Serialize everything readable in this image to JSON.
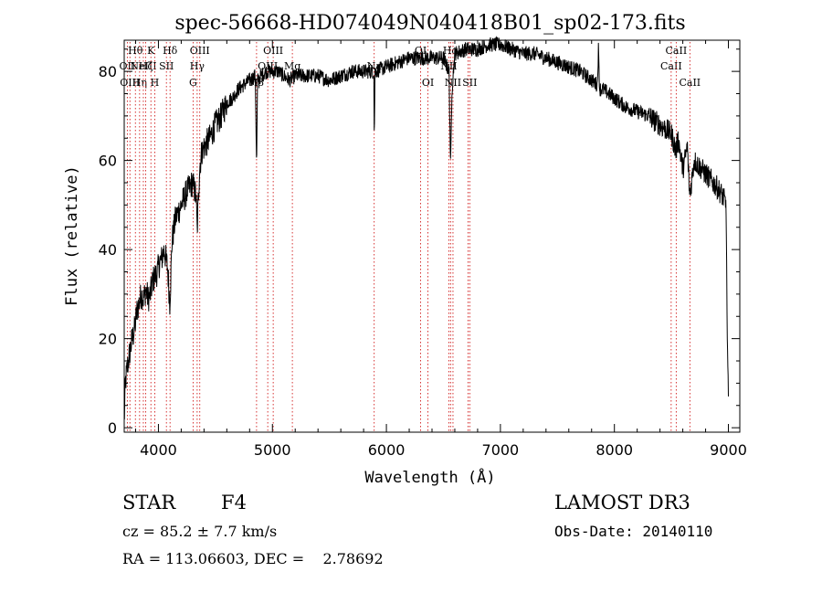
{
  "chart_data": {
    "type": "line",
    "title": "spec-56668-HD074049N040418B01_sp02-173.fits",
    "xlabel": "Wavelength (Å)",
    "ylabel": "Flux (relative)",
    "xlim": [
      3700,
      9100
    ],
    "ylim": [
      -1,
      87
    ],
    "xticks": [
      4000,
      5000,
      6000,
      7000,
      8000,
      9000
    ],
    "yticks": [
      0,
      20,
      40,
      60,
      80
    ],
    "series": [
      {
        "name": "spectrum",
        "x": [
          3700,
          3710,
          3730,
          3750,
          3770,
          3790,
          3810,
          3830,
          3850,
          3870,
          3890,
          3910,
          3930,
          3950,
          3970,
          3990,
          4010,
          4030,
          4050,
          4080,
          4100,
          4120,
          4150,
          4200,
          4250,
          4300,
          4330,
          4340,
          4360,
          4380,
          4400,
          4450,
          4500,
          4550,
          4600,
          4650,
          4700,
          4750,
          4800,
          4850,
          4861,
          4870,
          4900,
          4950,
          5000,
          5050,
          5100,
          5150,
          5200,
          5300,
          5400,
          5500,
          5600,
          5700,
          5800,
          5890,
          5893,
          5900,
          6000,
          6100,
          6200,
          6300,
          6400,
          6500,
          6550,
          6563,
          6575,
          6600,
          6700,
          6800,
          6900,
          7000,
          7100,
          7200,
          7300,
          7400,
          7500,
          7600,
          7700,
          7800,
          7850,
          7860,
          7870,
          7900,
          8000,
          8100,
          8200,
          8300,
          8400,
          8500,
          8540,
          8560,
          8600,
          8640,
          8660,
          8700,
          8800,
          8900,
          8950,
          8980,
          8990,
          9000
        ],
        "y": [
          1,
          10,
          14,
          17,
          20,
          22,
          26,
          28,
          30,
          29,
          31,
          29,
          30,
          33,
          34,
          35,
          37,
          38,
          40,
          36,
          28,
          42,
          47,
          50,
          53,
          55,
          52,
          44,
          58,
          62,
          63,
          65,
          68,
          70,
          73,
          74,
          76,
          77,
          78,
          79,
          58,
          78,
          79,
          80,
          80,
          80,
          79,
          78,
          79,
          79,
          79,
          78,
          79,
          80,
          80,
          80,
          64,
          80,
          81,
          82,
          83,
          83,
          83,
          83,
          80,
          58,
          76,
          84,
          85,
          85,
          86,
          86,
          85,
          84,
          84,
          83,
          82,
          81,
          80,
          78,
          77,
          85,
          76,
          76,
          74,
          72,
          71,
          70,
          68,
          66,
          62,
          65,
          58,
          63,
          52,
          60,
          57,
          54,
          52,
          50,
          20,
          6
        ],
        "line_style": "solid",
        "color": "#000000"
      }
    ],
    "line_markers": {
      "color": "#cc0000",
      "line_style": "dotted",
      "items": [
        {
          "wavelength": 3727,
          "label": "OII",
          "row": 1
        },
        {
          "wavelength": 3750,
          "label": "OIII",
          "row": 2
        },
        {
          "wavelength": 3798,
          "label": "Hθ",
          "row": 0
        },
        {
          "wavelength": 3835,
          "label": "Hη",
          "row": 2
        },
        {
          "wavelength": 3868,
          "label": "NeIII",
          "row": 1
        },
        {
          "wavelength": 3889,
          "label": "Hζ",
          "row": 1
        },
        {
          "wavelength": 3934,
          "label": "K",
          "row": 0
        },
        {
          "wavelength": 3968,
          "label": "H",
          "row": 2
        },
        {
          "wavelength": 4070,
          "label": "SII",
          "row": 1
        },
        {
          "wavelength": 4102,
          "label": "Hδ",
          "row": 0
        },
        {
          "wavelength": 4304,
          "label": "G",
          "row": 2
        },
        {
          "wavelength": 4340,
          "label": "Hγ",
          "row": 1
        },
        {
          "wavelength": 4363,
          "label": "OIII",
          "row": 0
        },
        {
          "wavelength": 4861,
          "label": "Hβ",
          "row": 2
        },
        {
          "wavelength": 4959,
          "label": "OIII",
          "row": 1
        },
        {
          "wavelength": 5007,
          "label": "OIII",
          "row": 0
        },
        {
          "wavelength": 5175,
          "label": "Mg",
          "row": 1
        },
        {
          "wavelength": 5893,
          "label": "Na",
          "row": 1
        },
        {
          "wavelength": 6300,
          "label": "OI",
          "row": 0
        },
        {
          "wavelength": 6364,
          "label": "OI",
          "row": 2
        },
        {
          "wavelength": 6548,
          "label": "NII",
          "row": 1
        },
        {
          "wavelength": 6563,
          "label": "Hα",
          "row": 0
        },
        {
          "wavelength": 6584,
          "label": "NII",
          "row": 2
        },
        {
          "wavelength": 6717,
          "label": "SII",
          "row": 0
        },
        {
          "wavelength": 6731,
          "label": "SII",
          "row": 2
        },
        {
          "wavelength": 8498,
          "label": "CaII",
          "row": 1
        },
        {
          "wavelength": 8542,
          "label": "CaII",
          "row": 0
        },
        {
          "wavelength": 8662,
          "label": "CaII",
          "row": 2
        }
      ]
    }
  },
  "info": {
    "class": "STAR",
    "subclass": "F4",
    "survey": "LAMOST DR3",
    "redshift": "cz = 85.2 ± 7.7 km/s",
    "obs_date": "Obs-Date: 20140110",
    "coords": "RA = 113.06603, DEC =    2.78692"
  }
}
